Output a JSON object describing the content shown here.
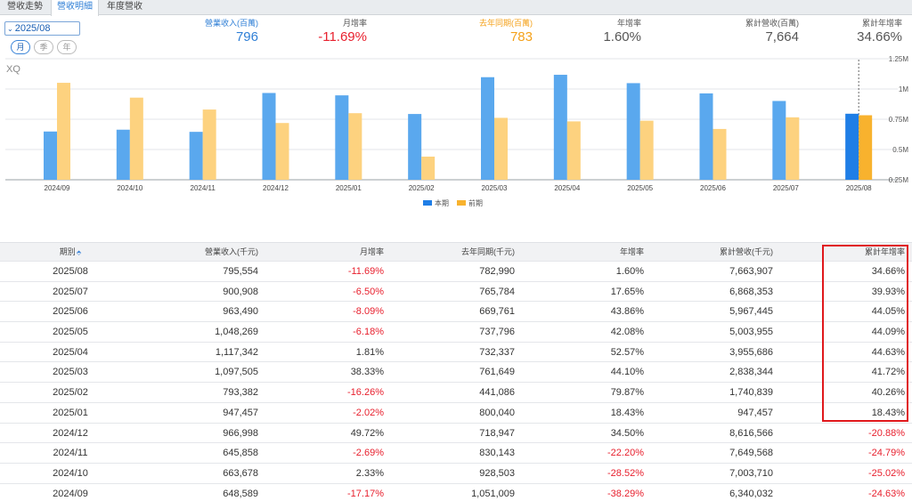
{
  "tabs": [
    {
      "label": "營收走勢",
      "active": false
    },
    {
      "label": "營收明細",
      "active": true
    },
    {
      "label": "年度營收",
      "active": false
    }
  ],
  "date_select": {
    "value": "2025/08",
    "caret": "⌄"
  },
  "period_pills": [
    {
      "label": "月",
      "active": true
    },
    {
      "label": "季",
      "active": false
    },
    {
      "label": "年",
      "active": false
    }
  ],
  "kpis": [
    {
      "label": "營業收入(百萬)",
      "value": "796",
      "label_color": "#2f7fd6",
      "value_color": "#2f7fd6"
    },
    {
      "label": "月增率",
      "value": "-11.69%",
      "label_color": "#555555",
      "value_color": "#e8202e"
    },
    {
      "label": "去年同期(百萬)",
      "value": "783",
      "label_color": "#f4a11a",
      "value_color": "#f4a11a"
    },
    {
      "label": "年增率",
      "value": "1.60%",
      "label_color": "#555555",
      "value_color": "#555555"
    },
    {
      "label": "累計營收(百萬)",
      "value": "7,664",
      "label_color": "#555555",
      "value_color": "#555555"
    },
    {
      "label": "累計年增率",
      "value": "34.66%",
      "label_color": "#555555",
      "value_color": "#555555"
    }
  ],
  "chart_watermark": "XQ",
  "chart_data": {
    "type": "bar",
    "categories": [
      "2024/09",
      "2024/10",
      "2024/11",
      "2024/12",
      "2025/01",
      "2025/02",
      "2025/03",
      "2025/04",
      "2025/05",
      "2025/06",
      "2025/07",
      "2025/08"
    ],
    "series": [
      {
        "name": "本期",
        "values": [
          648589,
          663678,
          645858,
          966998,
          947457,
          793382,
          1097505,
          1117342,
          1048269,
          963490,
          900908,
          795554
        ],
        "color": "#5aa8ee",
        "highlight_color": "#1f7ee6"
      },
      {
        "name": "前期",
        "values": [
          1051009,
          928503,
          830143,
          718947,
          800040,
          441086,
          761649,
          732337,
          737796,
          669761,
          765784,
          782990
        ],
        "color": "#fdd27f",
        "highlight_color": "#f8b22e"
      }
    ],
    "y_ticks": [
      "0.25M",
      "0.5M",
      "0.75M",
      "1M",
      "1.25M"
    ],
    "ylim": [
      250000,
      1250000
    ],
    "ytick_values": [
      250000,
      500000,
      750000,
      1000000,
      1250000
    ],
    "highlight_category": "2025/08",
    "legend_position": "bottom-center",
    "grid": true
  },
  "table": {
    "headers": [
      "期別",
      "營業收入(千元)",
      "月增率",
      "去年同期(千元)",
      "年增率",
      "累計營收(千元)",
      "累計年增率"
    ],
    "sort_icon": "⬘",
    "rows": [
      [
        "2025/08",
        "795,554",
        "-11.69%",
        "782,990",
        "1.60%",
        "7,663,907",
        "34.66%"
      ],
      [
        "2025/07",
        "900,908",
        "-6.50%",
        "765,784",
        "17.65%",
        "6,868,353",
        "39.93%"
      ],
      [
        "2025/06",
        "963,490",
        "-8.09%",
        "669,761",
        "43.86%",
        "5,967,445",
        "44.05%"
      ],
      [
        "2025/05",
        "1,048,269",
        "-6.18%",
        "737,796",
        "42.08%",
        "5,003,955",
        "44.09%"
      ],
      [
        "2025/04",
        "1,117,342",
        "1.81%",
        "732,337",
        "52.57%",
        "3,955,686",
        "44.63%"
      ],
      [
        "2025/03",
        "1,097,505",
        "38.33%",
        "761,649",
        "44.10%",
        "2,838,344",
        "41.72%"
      ],
      [
        "2025/02",
        "793,382",
        "-16.26%",
        "441,086",
        "79.87%",
        "1,740,839",
        "40.26%"
      ],
      [
        "2025/01",
        "947,457",
        "-2.02%",
        "800,040",
        "18.43%",
        "947,457",
        "18.43%"
      ],
      [
        "2024/12",
        "966,998",
        "49.72%",
        "718,947",
        "34.50%",
        "8,616,566",
        "-20.88%"
      ],
      [
        "2024/11",
        "645,858",
        "-2.69%",
        "830,143",
        "-22.20%",
        "7,649,568",
        "-24.79%"
      ],
      [
        "2024/10",
        "663,678",
        "2.33%",
        "928,503",
        "-28.52%",
        "7,003,710",
        "-25.02%"
      ],
      [
        "2024/09",
        "648,589",
        "-17.17%",
        "1,051,009",
        "-38.29%",
        "6,340,032",
        "-24.63%"
      ]
    ]
  }
}
